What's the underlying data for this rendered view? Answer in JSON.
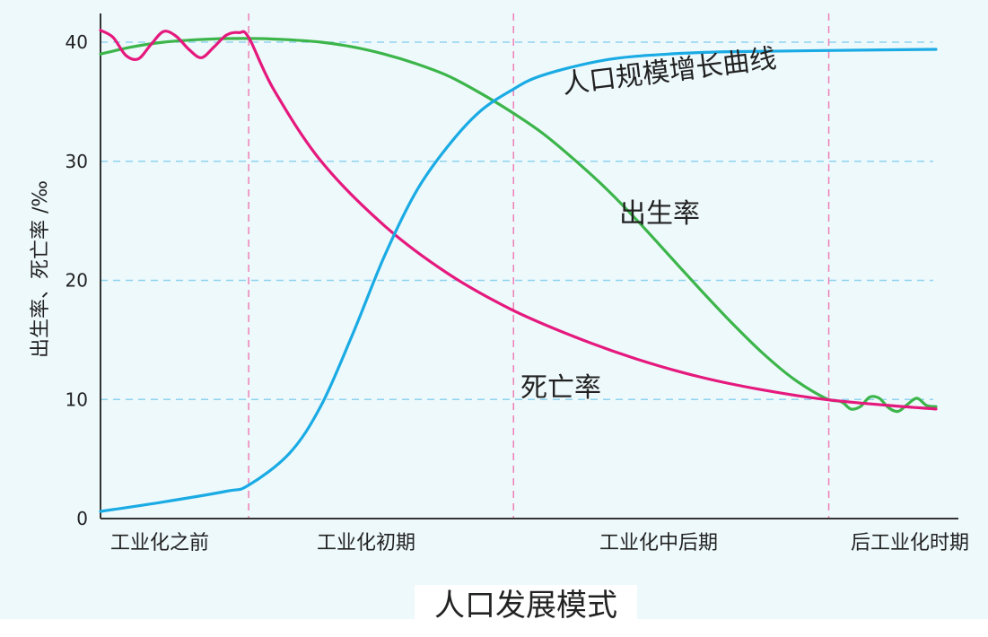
{
  "chart_data": {
    "type": "line",
    "title": "人口发展模式",
    "ylabel": "出生率、死亡率 /‰",
    "ylim": [
      0,
      40
    ],
    "yticks": [
      0,
      10,
      20,
      30,
      40
    ],
    "grid": true,
    "categories": [
      "工业化之前",
      "工业化初期",
      "工业化中后期",
      "后工业化时期"
    ],
    "series": [
      {
        "name": "出生率",
        "color": "#3cb54a",
        "points": [
          [
            0.0,
            39.0
          ],
          [
            0.1,
            39.6
          ],
          [
            0.2,
            40.0
          ],
          [
            0.3,
            40.2
          ],
          [
            0.4,
            40.3
          ],
          [
            0.5,
            40.3
          ],
          [
            0.6,
            40.2
          ],
          [
            0.7,
            40.0
          ],
          [
            0.8,
            39.6
          ],
          [
            0.9,
            39.0
          ],
          [
            1.0,
            38.2
          ],
          [
            1.1,
            37.2
          ],
          [
            1.2,
            35.8
          ],
          [
            1.3,
            34.2
          ],
          [
            1.4,
            32.4
          ],
          [
            1.5,
            30.2
          ],
          [
            1.6,
            27.8
          ],
          [
            1.7,
            25.1
          ],
          [
            1.8,
            22.2
          ],
          [
            1.9,
            19.3
          ],
          [
            2.0,
            16.5
          ],
          [
            2.1,
            13.9
          ],
          [
            2.2,
            11.7
          ],
          [
            2.3,
            10.1
          ],
          [
            2.35,
            9.8
          ],
          [
            2.38,
            9.2
          ],
          [
            2.41,
            9.4
          ],
          [
            2.44,
            10.2
          ],
          [
            2.47,
            10.1
          ],
          [
            2.5,
            9.3
          ],
          [
            2.53,
            9.0
          ],
          [
            2.56,
            9.6
          ],
          [
            2.59,
            10.1
          ],
          [
            2.62,
            9.5
          ],
          [
            2.65,
            9.4
          ]
        ]
      },
      {
        "name": "死亡率",
        "color": "#e5197d",
        "points": [
          [
            0.0,
            41.0
          ],
          [
            0.04,
            40.4
          ],
          [
            0.08,
            38.9
          ],
          [
            0.12,
            38.6
          ],
          [
            0.16,
            39.8
          ],
          [
            0.2,
            40.9
          ],
          [
            0.24,
            40.5
          ],
          [
            0.28,
            39.4
          ],
          [
            0.32,
            38.7
          ],
          [
            0.36,
            39.6
          ],
          [
            0.4,
            40.6
          ],
          [
            0.44,
            40.8
          ],
          [
            0.47,
            40.4
          ],
          [
            0.55,
            36.0
          ],
          [
            0.7,
            30.0
          ],
          [
            0.9,
            24.6
          ],
          [
            1.1,
            20.6
          ],
          [
            1.3,
            17.6
          ],
          [
            1.5,
            15.3
          ],
          [
            1.7,
            13.4
          ],
          [
            1.9,
            11.9
          ],
          [
            2.1,
            10.8
          ],
          [
            2.3,
            10.0
          ],
          [
            2.5,
            9.5
          ],
          [
            2.65,
            9.2
          ]
        ]
      },
      {
        "name": "人口规模增长曲线",
        "color": "#1aabe4",
        "points": [
          [
            0.0,
            0.6
          ],
          [
            0.2,
            1.4
          ],
          [
            0.4,
            2.3
          ],
          [
            0.47,
            2.8
          ],
          [
            0.6,
            5.5
          ],
          [
            0.7,
            9.5
          ],
          [
            0.8,
            15.5
          ],
          [
            0.9,
            22.0
          ],
          [
            1.0,
            27.4
          ],
          [
            1.1,
            31.2
          ],
          [
            1.2,
            34.1
          ],
          [
            1.3,
            35.9
          ],
          [
            1.4,
            37.2
          ],
          [
            1.6,
            38.5
          ],
          [
            1.8,
            39.0
          ],
          [
            2.0,
            39.2
          ],
          [
            2.3,
            39.3
          ],
          [
            2.65,
            39.4
          ]
        ]
      }
    ],
    "period_boundaries": [
      0.47,
      1.31,
      2.31
    ]
  }
}
